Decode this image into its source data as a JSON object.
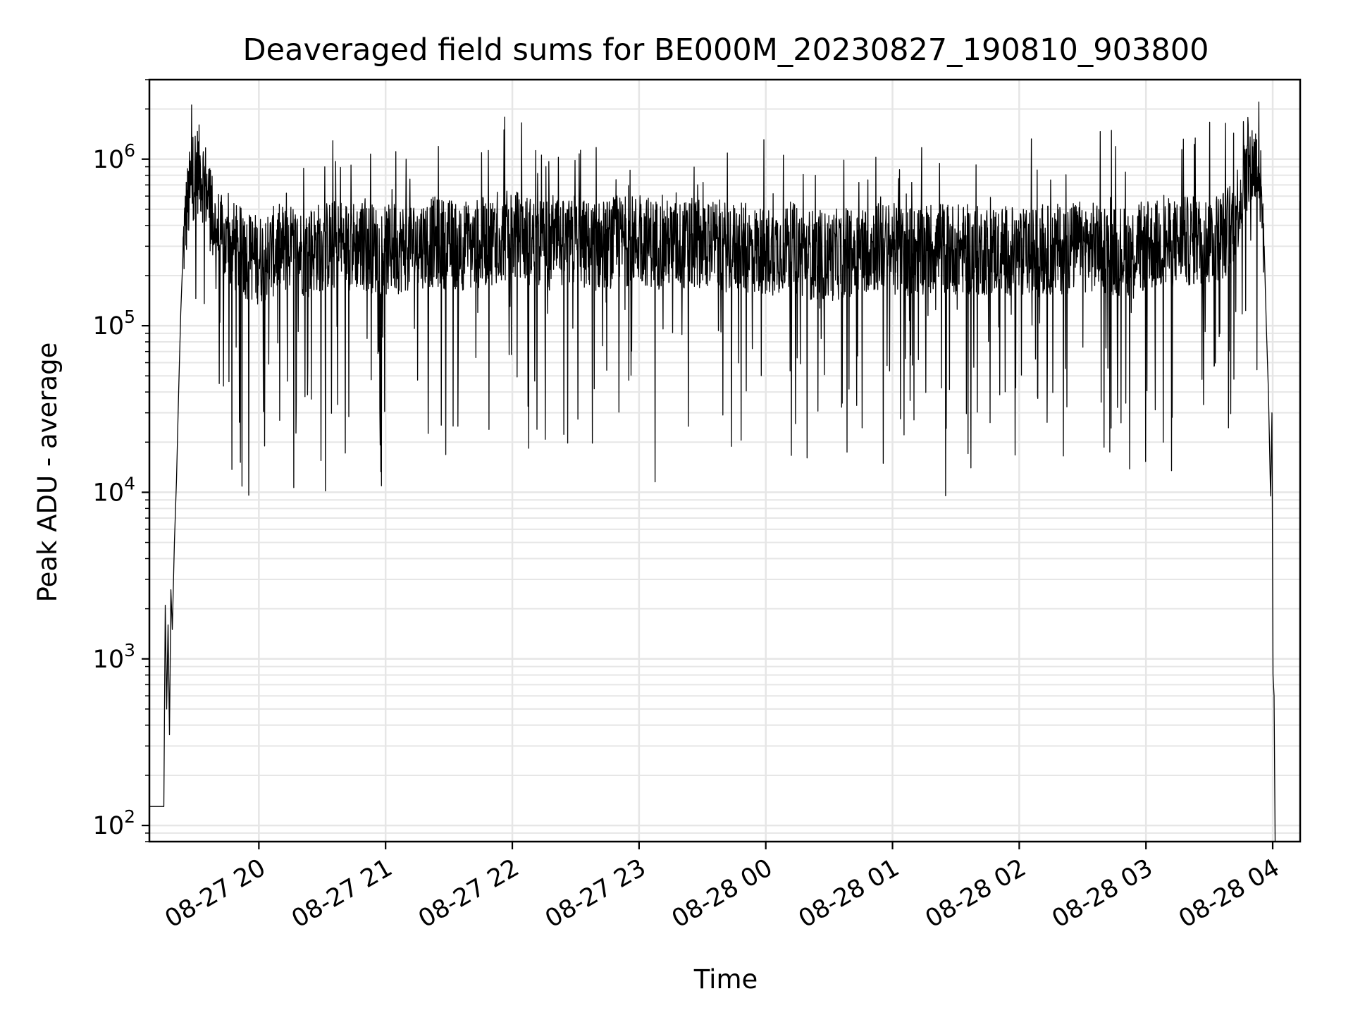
{
  "chart_data": {
    "type": "line",
    "title": "Deaveraged field sums for BE000M_20230827_190810_903800",
    "xlabel": "Time",
    "ylabel": "Peak ADU - average",
    "y_scale": "log",
    "ylim": [
      80,
      3000000
    ],
    "xlim": [
      "2023-08-27 19:08:10",
      "2023-08-28 04:13:00"
    ],
    "grid": true,
    "grid_color": "#e6e6e6",
    "line_color": "#000000",
    "x_ticks": [
      {
        "t": "2023-08-27 20:00",
        "label": "08-27 20"
      },
      {
        "t": "2023-08-27 21:00",
        "label": "08-27 21"
      },
      {
        "t": "2023-08-27 22:00",
        "label": "08-27 22"
      },
      {
        "t": "2023-08-27 23:00",
        "label": "08-27 23"
      },
      {
        "t": "2023-08-28 00:00",
        "label": "08-28 00"
      },
      {
        "t": "2023-08-28 01:00",
        "label": "08-28 01"
      },
      {
        "t": "2023-08-28 02:00",
        "label": "08-28 02"
      },
      {
        "t": "2023-08-28 03:00",
        "label": "08-28 03"
      },
      {
        "t": "2023-08-28 04:00",
        "label": "08-28 04"
      }
    ],
    "y_ticks": [
      {
        "value": 100,
        "base": "10",
        "exp": "2"
      },
      {
        "value": 1000,
        "base": "10",
        "exp": "3"
      },
      {
        "value": 10000,
        "base": "10",
        "exp": "4"
      },
      {
        "value": 100000,
        "base": "10",
        "exp": "5"
      },
      {
        "value": 1000000,
        "base": "10",
        "exp": "6"
      }
    ],
    "series": [
      {
        "x": [
          "2023-08-27 19:08:10",
          "2023-08-27 19:15:00",
          "2023-08-27 19:15:40",
          "2023-08-27 19:16:20",
          "2023-08-27 19:17:00",
          "2023-08-27 19:17:40",
          "2023-08-27 19:18:20",
          "2023-08-27 19:19:00",
          "2023-08-27 19:20:00",
          "2023-08-27 19:21:00",
          "2023-08-27 19:22:00",
          "2023-08-27 19:23:00",
          "2023-08-27 19:24:00",
          "2023-08-27 19:25:00",
          "2023-08-27 19:26:30",
          "2023-08-27 19:28:00",
          "2023-08-27 19:30:00",
          "2023-08-27 19:32:00",
          "2023-08-27 19:34:00",
          "2023-08-27 19:36:00",
          "2023-08-27 19:38:00",
          "2023-08-27 19:40:00",
          "2023-08-27 19:42:00",
          "2023-08-27 19:44:00",
          "2023-08-27 19:46:00",
          "2023-08-27 19:48:00",
          "2023-08-27 19:50:00",
          "2023-08-27 19:54:00",
          "2023-08-27 20:00:00",
          "2023-08-27 20:10:00",
          "2023-08-27 20:20:00",
          "2023-08-27 20:30:00",
          "2023-08-27 20:40:00",
          "2023-08-27 20:50:00",
          "2023-08-27 21:00:00",
          "2023-08-27 21:10:00",
          "2023-08-27 21:20:00",
          "2023-08-27 21:30:00",
          "2023-08-27 21:40:00",
          "2023-08-27 21:50:00",
          "2023-08-27 22:00:00",
          "2023-08-27 22:10:00",
          "2023-08-27 22:20:00",
          "2023-08-27 22:30:00",
          "2023-08-27 22:40:00",
          "2023-08-27 22:50:00",
          "2023-08-27 23:00:00",
          "2023-08-27 23:10:00",
          "2023-08-27 23:20:00",
          "2023-08-27 23:30:00",
          "2023-08-27 23:40:00",
          "2023-08-27 23:50:00",
          "2023-08-28 00:00:00",
          "2023-08-28 00:10:00",
          "2023-08-28 00:20:00",
          "2023-08-28 00:30:00",
          "2023-08-28 00:40:00",
          "2023-08-28 00:50:00",
          "2023-08-28 01:00:00",
          "2023-08-28 01:10:00",
          "2023-08-28 01:20:00",
          "2023-08-28 01:30:00",
          "2023-08-28 01:40:00",
          "2023-08-28 01:50:00",
          "2023-08-28 02:00:00",
          "2023-08-28 02:10:00",
          "2023-08-28 02:20:00",
          "2023-08-28 02:30:00",
          "2023-08-28 02:40:00",
          "2023-08-28 02:50:00",
          "2023-08-28 03:00:00",
          "2023-08-28 03:10:00",
          "2023-08-28 03:20:00",
          "2023-08-28 03:30:00",
          "2023-08-28 03:36:00",
          "2023-08-28 03:40:00",
          "2023-08-28 03:43:00",
          "2023-08-28 03:46:00",
          "2023-08-28 03:49:00",
          "2023-08-28 03:51:00",
          "2023-08-28 03:53:00",
          "2023-08-28 03:54:30",
          "2023-08-28 03:56:00",
          "2023-08-28 03:57:00",
          "2023-08-28 03:58:00",
          "2023-08-28 03:59:00",
          "2023-08-28 03:59:40",
          "2023-08-28 04:00:10",
          "2023-08-28 04:00:40",
          "2023-08-28 04:01:10"
        ],
        "y": [
          130,
          130,
          2100,
          500,
          1600,
          350,
          2600,
          1500,
          5000,
          12000,
          40000,
          120000,
          260000,
          400000,
          550000,
          700000,
          900000,
          850000,
          750000,
          600000,
          450000,
          380000,
          330000,
          300000,
          290000,
          300000,
          280000,
          270000,
          250000,
          290000,
          280000,
          300000,
          310000,
          300000,
          280000,
          300000,
          320000,
          310000,
          300000,
          330000,
          350000,
          320000,
          300000,
          310000,
          300000,
          320000,
          330000,
          310000,
          300000,
          320000,
          300000,
          290000,
          280000,
          300000,
          270000,
          260000,
          280000,
          300000,
          290000,
          280000,
          300000,
          290000,
          280000,
          290000,
          270000,
          280000,
          290000,
          300000,
          290000,
          280000,
          300000,
          310000,
          320000,
          330000,
          350000,
          400000,
          500000,
          700000,
          900000,
          950000,
          900000,
          600000,
          300000,
          100000,
          40000,
          9500,
          30000,
          800,
          600,
          75
        ]
      }
    ]
  }
}
